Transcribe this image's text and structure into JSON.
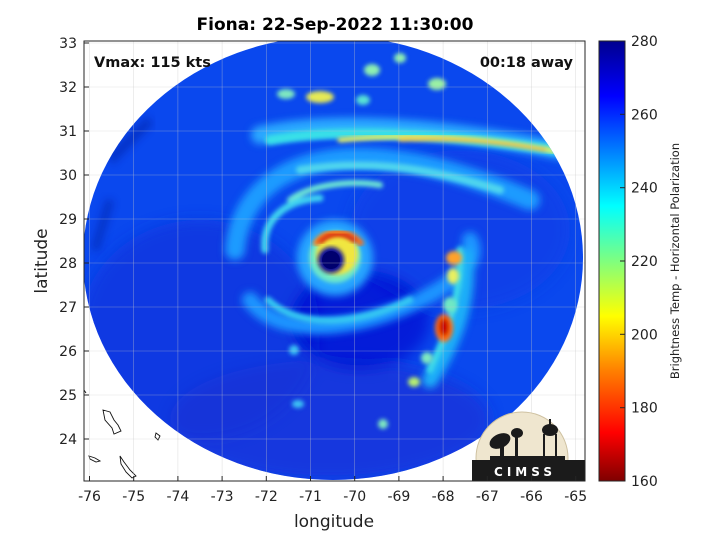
{
  "title": "Fiona: 22-Sep-2022 11:30:00",
  "vmax_label": "Vmax: 115 kts",
  "time_label": "00:18 away",
  "logo_text": "CIMSS",
  "colorbar": {
    "label": "Brightness Temp - Horizontal Polarization",
    "ticks": [
      "160",
      "180",
      "200",
      "220",
      "240",
      "260",
      "280"
    ],
    "range": [
      160,
      280
    ],
    "colors": [
      "#7f0000",
      "#ff0000",
      "#ff7f00",
      "#ffff00",
      "#7fff7f",
      "#00ffff",
      "#007fff",
      "#0000ff",
      "#00008f"
    ]
  },
  "chart_data": {
    "type": "heatmap",
    "title": "Fiona: 22-Sep-2022 11:30:00",
    "xlabel": "longitude",
    "ylabel": "latitude",
    "xlim": [
      -76.2,
      -64.8
    ],
    "ylim": [
      23.1,
      33.1
    ],
    "x_ticks": [
      "-76",
      "-75",
      "-74",
      "-73",
      "-72",
      "-71",
      "-70",
      "-69",
      "-68",
      "-67",
      "-66",
      "-65"
    ],
    "y_ticks": [
      "24",
      "25",
      "26",
      "27",
      "28",
      "29",
      "30",
      "31",
      "32",
      "33"
    ],
    "grid": true,
    "storm_center": {
      "lon": -70.8,
      "lat": 28.1
    },
    "features": [
      {
        "name": "eye",
        "lon": -70.8,
        "lat": 28.1,
        "brightness_temp_k": 275
      },
      {
        "name": "eyewall",
        "lon": -70.5,
        "lat": 28.3,
        "brightness_temp_k": 185
      },
      {
        "name": "rainband-se",
        "lon": -68.0,
        "lat": 26.5,
        "brightness_temp_k": 170
      },
      {
        "name": "rainband-n",
        "lon": -69.0,
        "lat": 30.9,
        "brightness_temp_k": 205
      },
      {
        "name": "cells-nnw",
        "lon": -71.5,
        "lat": 31.7,
        "brightness_temp_k": 210
      },
      {
        "name": "background-ocean",
        "lon": -73.0,
        "lat": 26.0,
        "brightness_temp_k": 265
      }
    ]
  }
}
